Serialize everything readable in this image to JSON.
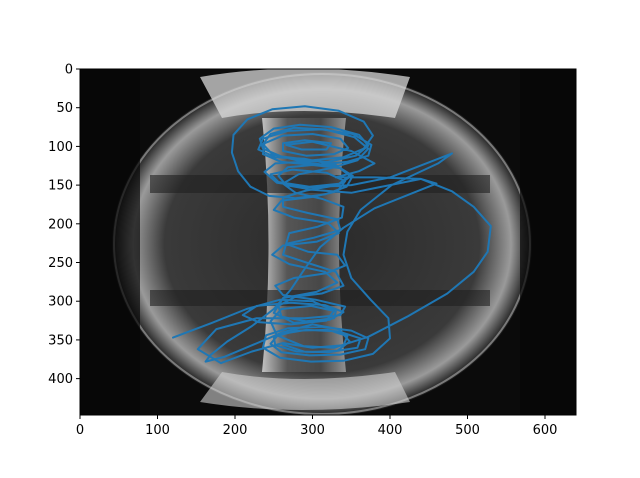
{
  "chart_data": {
    "type": "line",
    "title": "",
    "xlabel": "",
    "ylabel": "",
    "xlim": [
      0,
      640
    ],
    "ylim": [
      447,
      0
    ],
    "y_axis_inverted": true,
    "x_ticks": [
      0,
      100,
      200,
      300,
      400,
      500,
      600
    ],
    "y_ticks": [
      0,
      50,
      100,
      150,
      200,
      250,
      300,
      350,
      400
    ],
    "grid": false,
    "legend": "none",
    "background": "grayscale camera image of a tokamak vessel interior",
    "series": [
      {
        "color": "#1f77b4",
        "description": "helical field-line trace",
        "points": [
          [
            120,
            347
          ],
          [
            170,
            328
          ],
          [
            215,
            310
          ],
          [
            258,
            298
          ],
          [
            300,
            300
          ],
          [
            328,
            312
          ],
          [
            318,
            325
          ],
          [
            272,
            330
          ],
          [
            230,
            327
          ],
          [
            210,
            318
          ],
          [
            228,
            306
          ],
          [
            272,
            302
          ],
          [
            316,
            305
          ],
          [
            340,
            314
          ],
          [
            322,
            324
          ],
          [
            276,
            328
          ],
          [
            250,
            315
          ],
          [
            262,
            296
          ],
          [
            305,
            288
          ],
          [
            332,
            276
          ],
          [
            316,
            262
          ],
          [
            270,
            252
          ],
          [
            248,
            240
          ],
          [
            262,
            228
          ],
          [
            306,
            223
          ],
          [
            334,
            212
          ],
          [
            320,
            199
          ],
          [
            276,
            192
          ],
          [
            250,
            182
          ],
          [
            260,
            170
          ],
          [
            302,
            165
          ],
          [
            332,
            158
          ],
          [
            342,
            145
          ],
          [
            318,
            134
          ],
          [
            274,
            130
          ],
          [
            246,
            136
          ],
          [
            256,
            146
          ],
          [
            296,
            152
          ],
          [
            336,
            148
          ],
          [
            350,
            138
          ],
          [
            332,
            126
          ],
          [
            286,
            120
          ],
          [
            252,
            122
          ],
          [
            238,
            133
          ],
          [
            254,
            147
          ],
          [
            298,
            153
          ],
          [
            350,
            150
          ],
          [
            400,
            140
          ],
          [
            480,
            109
          ],
          [
            462,
            122
          ],
          [
            402,
            150
          ],
          [
            362,
            182
          ],
          [
            345,
            210
          ],
          [
            340,
            240
          ],
          [
            350,
            270
          ],
          [
            375,
            298
          ],
          [
            398,
            322
          ],
          [
            400,
            348
          ],
          [
            378,
            368
          ],
          [
            340,
            377
          ],
          [
            298,
            378
          ],
          [
            258,
            373
          ],
          [
            236,
            360
          ],
          [
            240,
            344
          ],
          [
            268,
            335
          ],
          [
            312,
            333
          ],
          [
            350,
            338
          ],
          [
            372,
            348
          ],
          [
            368,
            362
          ],
          [
            336,
            369
          ],
          [
            296,
            370
          ],
          [
            260,
            366
          ],
          [
            246,
            355
          ],
          [
            256,
            343
          ],
          [
            292,
            337
          ],
          [
            334,
            339
          ],
          [
            362,
            348
          ],
          [
            358,
            360
          ],
          [
            320,
            366
          ],
          [
            280,
            365
          ],
          [
            252,
            357
          ],
          [
            250,
            346
          ],
          [
            280,
            338
          ],
          [
            320,
            337
          ],
          [
            345,
            345
          ],
          [
            340,
            357
          ],
          [
            300,
            360
          ],
          [
            262,
            354
          ],
          [
            222,
            365
          ],
          [
            182,
            380
          ],
          [
            152,
            362
          ],
          [
            176,
            336
          ],
          [
            228,
            322
          ],
          [
            290,
            322
          ],
          [
            336,
            318
          ],
          [
            342,
            307
          ],
          [
            304,
            298
          ],
          [
            262,
            292
          ],
          [
            252,
            280
          ],
          [
            276,
            270
          ],
          [
            318,
            264
          ],
          [
            342,
            254
          ],
          [
            332,
            240
          ],
          [
            294,
            236
          ],
          [
            266,
            226
          ],
          [
            270,
            212
          ],
          [
            306,
            204
          ],
          [
            338,
            192
          ],
          [
            340,
            178
          ],
          [
            313,
            168
          ],
          [
            278,
            160
          ],
          [
            262,
            148
          ],
          [
            282,
            136
          ],
          [
            324,
            128
          ],
          [
            358,
            118
          ],
          [
            372,
            103
          ],
          [
            354,
            88
          ],
          [
            316,
            78
          ],
          [
            276,
            76
          ],
          [
            246,
            84
          ],
          [
            236,
            97
          ],
          [
            248,
            110
          ],
          [
            280,
            118
          ],
          [
            320,
            120
          ],
          [
            356,
            112
          ],
          [
            372,
            99
          ],
          [
            360,
            85
          ],
          [
            324,
            75
          ],
          [
            284,
            72
          ],
          [
            250,
            77
          ],
          [
            232,
            90
          ],
          [
            236,
            103
          ],
          [
            260,
            113
          ],
          [
            300,
            118
          ],
          [
            340,
            114
          ],
          [
            366,
            103
          ],
          [
            378,
            86
          ],
          [
            366,
            68
          ],
          [
            334,
            54
          ],
          [
            290,
            48
          ],
          [
            248,
            52
          ],
          [
            216,
            65
          ],
          [
            198,
            85
          ],
          [
            196,
            108
          ],
          [
            204,
            132
          ],
          [
            220,
            152
          ],
          [
            244,
            164
          ],
          [
            278,
            167
          ],
          [
            316,
            162
          ],
          [
            344,
            152
          ],
          [
            352,
            138
          ],
          [
            336,
            128
          ],
          [
            300,
            124
          ],
          [
            268,
            127
          ],
          [
            256,
            138
          ],
          [
            266,
            150
          ],
          [
            300,
            156
          ],
          [
            350,
            160
          ],
          [
            400,
            150
          ],
          [
            440,
            142
          ],
          [
            480,
            158
          ],
          [
            508,
            178
          ],
          [
            530,
            203
          ],
          [
            526,
            236
          ],
          [
            508,
            262
          ],
          [
            474,
            290
          ],
          [
            422,
            320
          ],
          [
            372,
            346
          ],
          [
            328,
            360
          ],
          [
            288,
            358
          ],
          [
            254,
            344
          ],
          [
            246,
            326
          ],
          [
            260,
            310
          ],
          [
            298,
            306
          ],
          [
            330,
            313
          ],
          [
            328,
            322
          ],
          [
            292,
            326
          ],
          [
            260,
            320
          ],
          [
            256,
            306
          ],
          [
            278,
            294
          ],
          [
            312,
            290
          ],
          [
            340,
            280
          ],
          [
            330,
            262
          ],
          [
            292,
            250
          ],
          [
            262,
            240
          ],
          [
            266,
            226
          ],
          [
            302,
            218
          ],
          [
            336,
            208
          ],
          [
            332,
            194
          ],
          [
            294,
            186
          ],
          [
            262,
            178
          ],
          [
            262,
            166
          ],
          [
            292,
            157
          ],
          [
            332,
            150
          ],
          [
            348,
            138
          ],
          [
            330,
            124
          ],
          [
            290,
            116
          ],
          [
            252,
            114
          ],
          [
            230,
            104
          ],
          [
            236,
            90
          ],
          [
            268,
            80
          ],
          [
            312,
            78
          ],
          [
            352,
            84
          ],
          [
            376,
            98
          ],
          [
            372,
            112
          ],
          [
            344,
            120
          ],
          [
            302,
            124
          ],
          [
            260,
            120
          ],
          [
            236,
            110
          ],
          [
            238,
            96
          ],
          [
            262,
            86
          ],
          [
            300,
            84
          ],
          [
            336,
            90
          ],
          [
            346,
            102
          ],
          [
            328,
            110
          ],
          [
            292,
            112
          ],
          [
            262,
            106
          ],
          [
            262,
            96
          ],
          [
            290,
            92
          ],
          [
            324,
            96
          ],
          [
            318,
            104
          ],
          [
            286,
            104
          ],
          [
            266,
            98
          ],
          [
            300,
            94
          ],
          [
            350,
            106
          ],
          [
            380,
            122
          ],
          [
            360,
            132
          ],
          [
            330,
            140
          ],
          [
            380,
            140
          ],
          [
            440,
            142
          ],
          [
            460,
            148
          ],
          [
            430,
            160
          ],
          [
            380,
            180
          ],
          [
            340,
            205
          ],
          [
            310,
            230
          ],
          [
            290,
            258
          ],
          [
            272,
            285
          ],
          [
            250,
            310
          ],
          [
            222,
            332
          ],
          [
            190,
            352
          ],
          [
            168,
            370
          ],
          [
            162,
            378
          ],
          [
            186,
            372
          ],
          [
            224,
            356
          ],
          [
            262,
            340
          ],
          [
            300,
            330
          ],
          [
            334,
            336
          ],
          [
            348,
            352
          ],
          [
            332,
            364
          ],
          [
            292,
            366
          ],
          [
            262,
            356
          ]
        ]
      }
    ]
  }
}
